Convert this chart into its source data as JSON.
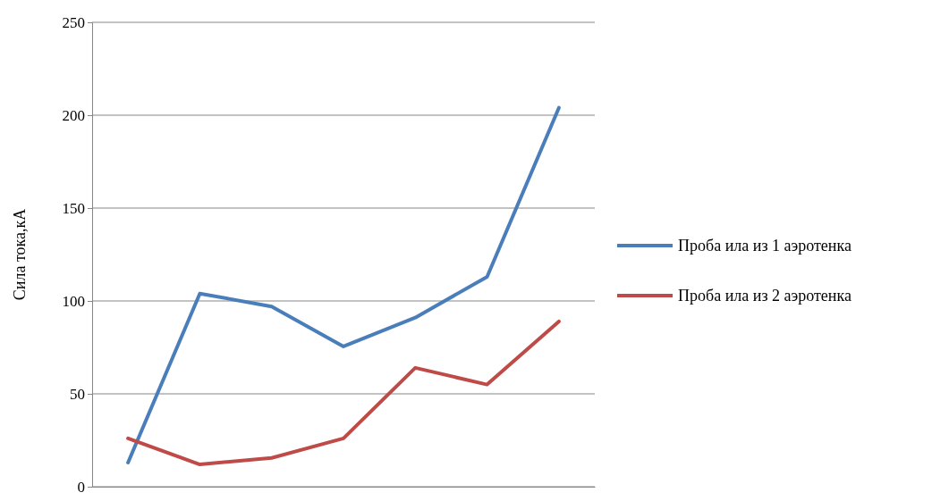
{
  "chart_data": {
    "type": "line",
    "ylabel": "Сила тока,кА",
    "categories": [
      null,
      null,
      null,
      null,
      null,
      null,
      null
    ],
    "series": [
      {
        "name": "Проба ила из 1 аэротенка",
        "color": "#4a7ebb",
        "values": [
          13,
          104,
          97,
          75.5,
          91,
          113,
          204
        ]
      },
      {
        "name": "Проба ила из 2 аэротенка",
        "color": "#be4b48",
        "values": [
          26,
          12,
          15.5,
          26,
          64,
          55,
          89
        ]
      }
    ],
    "ylim": [
      0,
      250
    ],
    "yticks": [
      0,
      50,
      100,
      150,
      200,
      250
    ],
    "grid": "y",
    "legend": "right",
    "marker": "none",
    "line_style": "solid"
  }
}
